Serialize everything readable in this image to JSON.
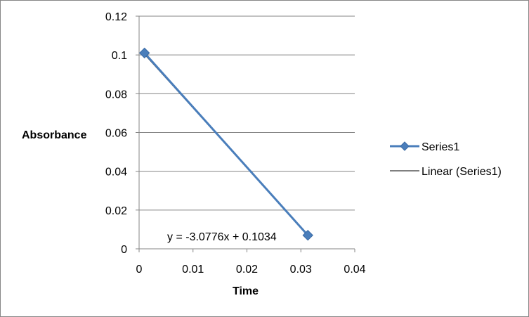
{
  "chart_data": {
    "type": "scatter",
    "title": "",
    "xlabel": "Time",
    "ylabel": "Absorbance",
    "xlim": [
      0,
      0.04
    ],
    "ylim": [
      0,
      0.12
    ],
    "xticks": [
      "0",
      "0.01",
      "0.02",
      "0.03",
      "0.04"
    ],
    "yticks": [
      "0",
      "0.02",
      "0.04",
      "0.06",
      "0.08",
      "0.1",
      "0.12"
    ],
    "grid": "horizontal",
    "legend_position": "right",
    "series": [
      {
        "name": "Series1",
        "color": "#4a7ebb",
        "marker": "diamond",
        "points": [
          {
            "x": 0.001,
            "y": 0.101
          },
          {
            "x": 0.0313,
            "y": 0.007
          }
        ]
      }
    ],
    "trendline": {
      "name": "Linear (Series1)",
      "color": "#000000",
      "slope": -3.0776,
      "intercept": 0.1034,
      "x_range": [
        0.001,
        0.0313
      ],
      "equation": "y = -3.0776x + 0.1034"
    }
  }
}
